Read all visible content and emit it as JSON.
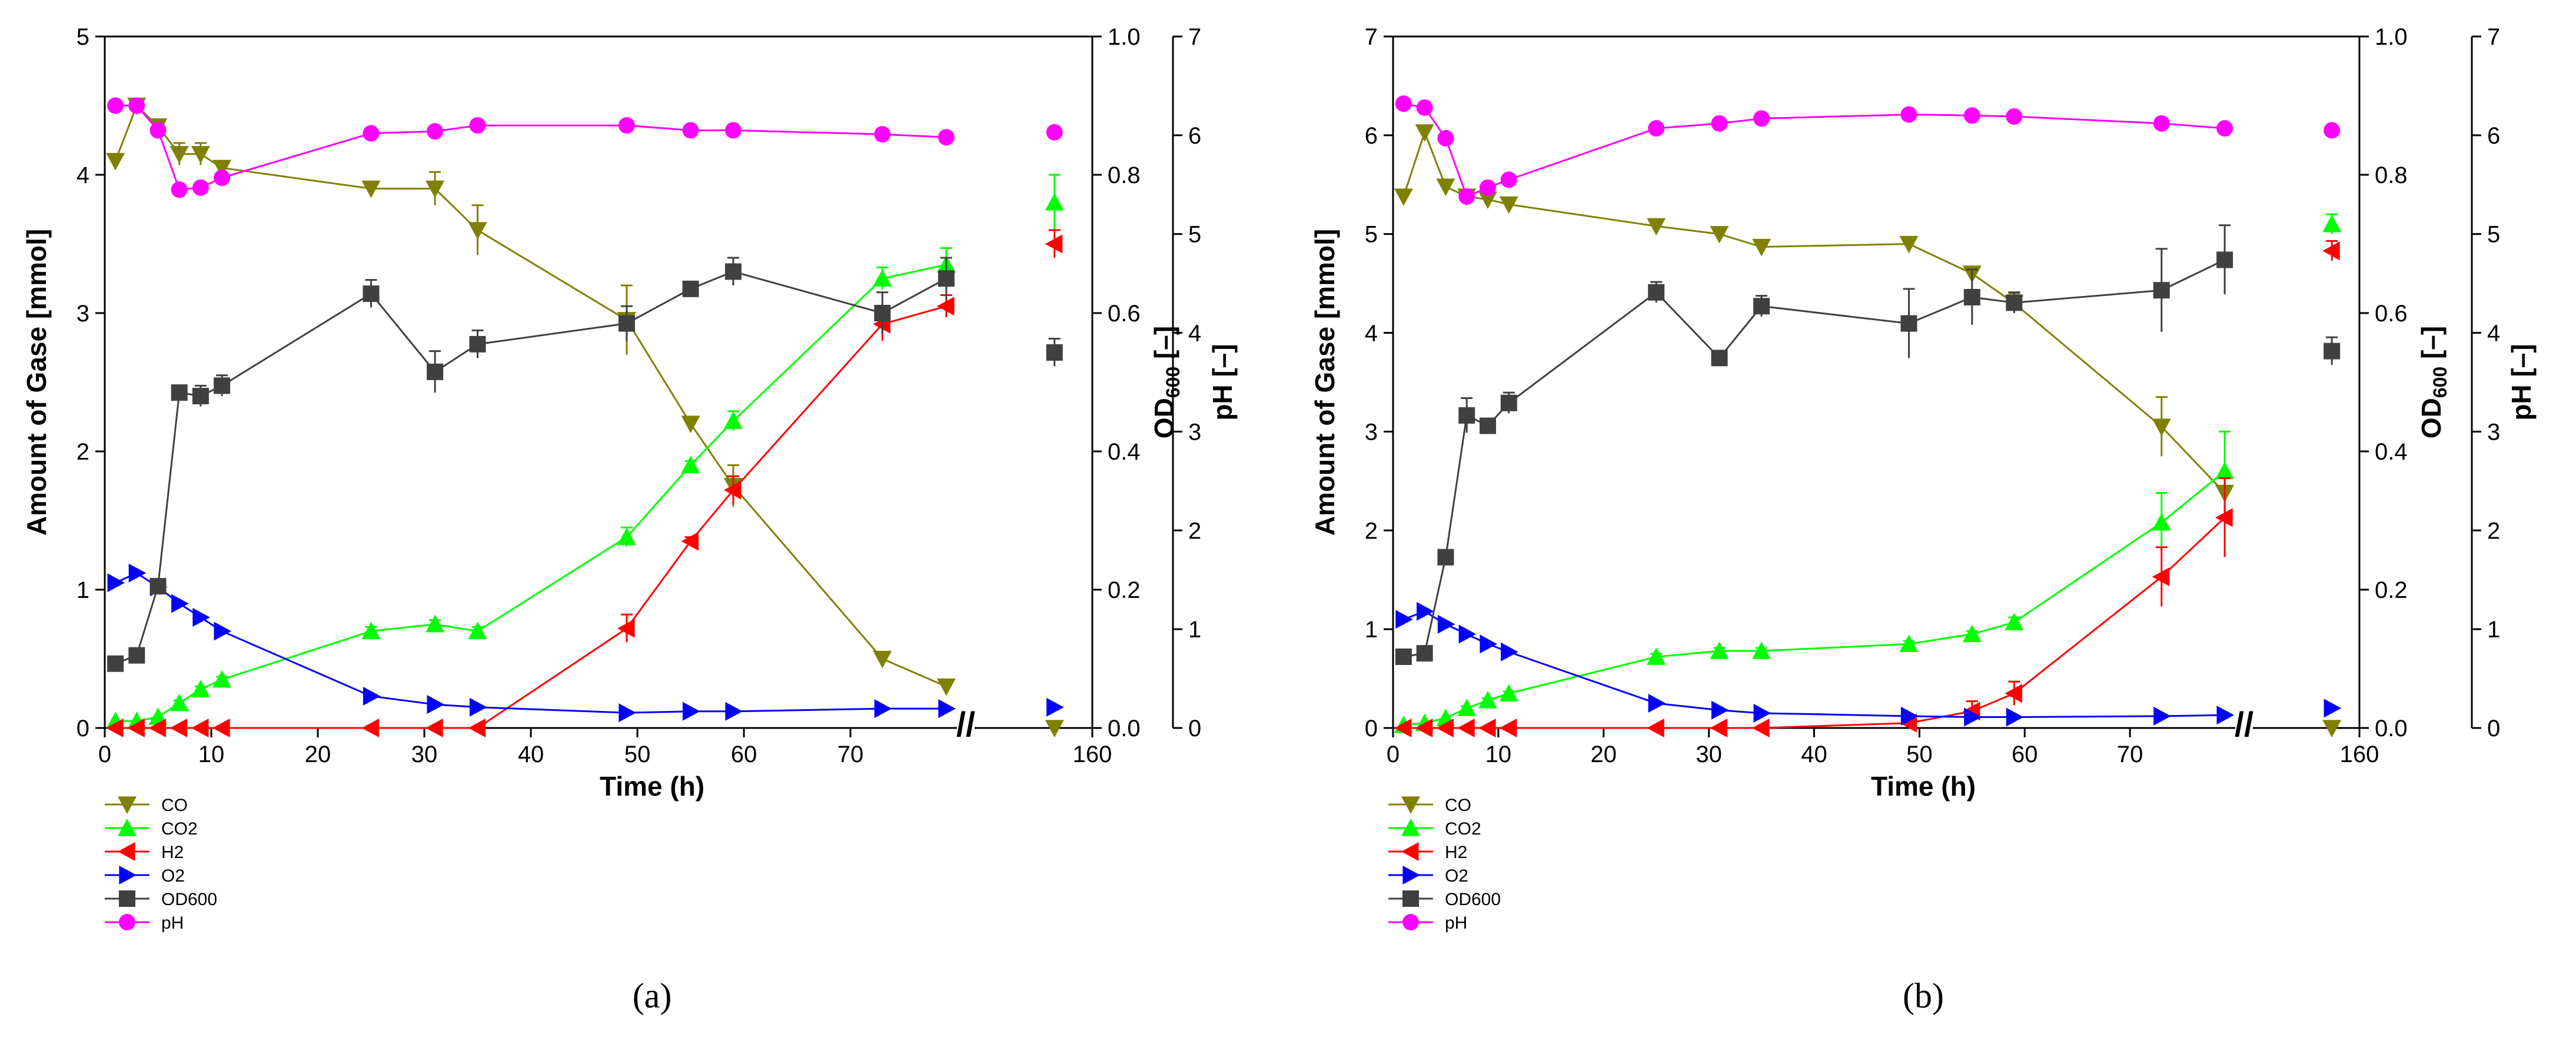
{
  "figure": {
    "panel_labels": [
      "(a)",
      "(b)"
    ],
    "axis_break_symbol": "//"
  },
  "colors": {
    "CO": "#808000",
    "CO2": "#00ff00",
    "H2": "#ff0000",
    "O2": "#0000ff",
    "OD600": "#404040",
    "pH": "#ff00ff",
    "axis": "#000000"
  },
  "chart_data": [
    {
      "type": "line",
      "panel": "(a)",
      "xlabel": "Time (h)",
      "ylabel_left": "Amount of Gase [mmol]",
      "ylabel_od": "OD",
      "ylabel_od_sub": "600",
      "ylabel_od_unit": " [–]",
      "ylabel_ph": "pH [–]",
      "x_ticks": [
        "0",
        "10",
        "20",
        "30",
        "40",
        "50",
        "60",
        "70",
        "160"
      ],
      "x_break": "//",
      "ylim_left": [
        0,
        5
      ],
      "y_ticks_left": [
        "0",
        "1",
        "2",
        "3",
        "4",
        "5"
      ],
      "ylim_od": [
        0,
        1.0
      ],
      "y_ticks_od": [
        "0.0",
        "0.2",
        "0.4",
        "0.6",
        "0.8",
        "1.0"
      ],
      "ylim_ph": [
        0,
        7
      ],
      "y_ticks_ph": [
        "0",
        "1",
        "2",
        "3",
        "4",
        "5",
        "6",
        "7"
      ],
      "legend_position": "below-left",
      "series": [
        {
          "name": "CO",
          "axis": "left",
          "marker": "triangle-down",
          "x": [
            1,
            3,
            5,
            7,
            9,
            11,
            25,
            31,
            35,
            49,
            55,
            59,
            73,
            79,
            160
          ],
          "y": [
            4.1,
            4.5,
            4.35,
            4.15,
            4.15,
            4.05,
            3.9,
            3.9,
            3.6,
            2.95,
            2.2,
            1.75,
            0.5,
            0.3,
            0.0
          ],
          "err": [
            0.05,
            0.05,
            0.05,
            0.08,
            0.08,
            0.05,
            0.05,
            0.12,
            0.18,
            0.25,
            0.05,
            0.15,
            0.05,
            0.05,
            0.0
          ]
        },
        {
          "name": "CO2",
          "axis": "left",
          "marker": "triangle-up",
          "x": [
            1,
            3,
            5,
            7,
            9,
            11,
            25,
            31,
            35,
            49,
            55,
            59,
            73,
            79,
            160
          ],
          "y": [
            0.05,
            0.05,
            0.08,
            0.18,
            0.28,
            0.35,
            0.7,
            0.75,
            0.7,
            1.38,
            1.9,
            2.22,
            3.25,
            3.35,
            3.8
          ],
          "err": [
            0.0,
            0.0,
            0.0,
            0.02,
            0.02,
            0.02,
            0.03,
            0.03,
            0.03,
            0.07,
            0.03,
            0.07,
            0.08,
            0.12,
            0.2
          ]
        },
        {
          "name": "H2",
          "axis": "left",
          "marker": "triangle-left",
          "x": [
            1,
            3,
            5,
            7,
            9,
            11,
            25,
            31,
            35,
            49,
            55,
            59,
            73,
            79,
            160
          ],
          "y": [
            0.0,
            0.0,
            0.0,
            0.0,
            0.0,
            0.0,
            0.0,
            0.0,
            0.0,
            0.72,
            1.35,
            1.72,
            2.92,
            3.05,
            3.5
          ],
          "err": [
            0.0,
            0.0,
            0.0,
            0.0,
            0.0,
            0.0,
            0.0,
            0.0,
            0.0,
            0.1,
            0.03,
            0.1,
            0.12,
            0.08,
            0.1
          ]
        },
        {
          "name": "O2",
          "axis": "left",
          "marker": "triangle-right",
          "x": [
            1,
            3,
            5,
            7,
            9,
            11,
            25,
            31,
            35,
            49,
            55,
            59,
            73,
            79,
            160
          ],
          "y": [
            1.05,
            1.12,
            1.02,
            0.9,
            0.8,
            0.7,
            0.23,
            0.17,
            0.15,
            0.11,
            0.12,
            0.12,
            0.14,
            0.14,
            0.15
          ],
          "err": [
            0,
            0,
            0,
            0,
            0,
            0,
            0,
            0,
            0,
            0,
            0,
            0,
            0,
            0,
            0
          ]
        },
        {
          "name": "OD600",
          "axis": "od",
          "marker": "square",
          "x": [
            1,
            3,
            5,
            7,
            9,
            11,
            25,
            31,
            35,
            49,
            55,
            59,
            73,
            79,
            160
          ],
          "y": [
            0.093,
            0.105,
            0.205,
            0.485,
            0.48,
            0.495,
            0.628,
            0.515,
            0.555,
            0.585,
            0.635,
            0.66,
            0.6,
            0.65,
            0.543
          ],
          "err": [
            0.01,
            0.005,
            0.005,
            0.005,
            0.015,
            0.015,
            0.02,
            0.03,
            0.02,
            0.025,
            0.005,
            0.02,
            0.03,
            0.03,
            0.02
          ]
        },
        {
          "name": "pH",
          "axis": "ph",
          "marker": "circle",
          "x": [
            1,
            3,
            5,
            7,
            9,
            11,
            25,
            31,
            35,
            49,
            55,
            59,
            73,
            79,
            160
          ],
          "y": [
            6.3,
            6.3,
            6.05,
            5.45,
            5.47,
            5.57,
            6.02,
            6.04,
            6.1,
            6.1,
            6.05,
            6.05,
            6.01,
            5.98,
            6.03
          ],
          "err": [
            0,
            0,
            0,
            0,
            0,
            0,
            0,
            0,
            0,
            0,
            0,
            0,
            0,
            0,
            0
          ]
        }
      ]
    },
    {
      "type": "line",
      "panel": "(b)",
      "xlabel": "Time (h)",
      "ylabel_left": "Amount of Gase [mmol]",
      "ylabel_od": "OD",
      "ylabel_od_sub": "600",
      "ylabel_od_unit": " [–]",
      "ylabel_ph": "pH [–]",
      "x_ticks": [
        "0",
        "10",
        "20",
        "30",
        "40",
        "50",
        "60",
        "70",
        "160"
      ],
      "x_break": "//",
      "ylim_left": [
        0,
        7
      ],
      "y_ticks_left": [
        "0",
        "1",
        "2",
        "3",
        "4",
        "5",
        "6",
        "7"
      ],
      "ylim_od": [
        0,
        1.0
      ],
      "y_ticks_od": [
        "0.0",
        "0.2",
        "0.4",
        "0.6",
        "0.8",
        "1.0"
      ],
      "ylim_ph": [
        0,
        7
      ],
      "y_ticks_ph": [
        "0",
        "1",
        "2",
        "3",
        "4",
        "5",
        "6",
        "7"
      ],
      "legend_position": "below-left",
      "series": [
        {
          "name": "CO",
          "axis": "left",
          "marker": "triangle-down",
          "x": [
            1,
            3,
            5,
            7,
            9,
            11,
            25,
            31,
            35,
            49,
            55,
            59,
            73,
            79,
            160
          ],
          "y": [
            5.38,
            6.03,
            5.48,
            5.38,
            5.35,
            5.3,
            5.08,
            5.0,
            4.87,
            4.9,
            4.6,
            4.3,
            3.05,
            2.38,
            0.0
          ],
          "err": [
            0.05,
            0.05,
            0.05,
            0.05,
            0.08,
            0.05,
            0.05,
            0.05,
            0.05,
            0.05,
            0.07,
            0.1,
            0.3,
            0.2,
            0.0
          ]
        },
        {
          "name": "CO2",
          "axis": "left",
          "marker": "triangle-up",
          "x": [
            1,
            3,
            5,
            7,
            9,
            11,
            25,
            31,
            35,
            49,
            55,
            59,
            73,
            79,
            160
          ],
          "y": [
            0.03,
            0.05,
            0.1,
            0.2,
            0.28,
            0.35,
            0.72,
            0.78,
            0.78,
            0.85,
            0.95,
            1.07,
            2.08,
            2.6,
            5.1
          ],
          "err": [
            0.0,
            0.0,
            0.0,
            0.02,
            0.02,
            0.02,
            0.03,
            0.03,
            0.03,
            0.03,
            0.03,
            0.05,
            0.3,
            0.4,
            0.1
          ]
        },
        {
          "name": "H2",
          "axis": "left",
          "marker": "triangle-left",
          "x": [
            1,
            3,
            5,
            7,
            9,
            11,
            25,
            31,
            35,
            49,
            55,
            59,
            73,
            79,
            160
          ],
          "y": [
            0.0,
            0.0,
            0.0,
            0.0,
            0.0,
            0.0,
            0.0,
            0.0,
            0.0,
            0.05,
            0.17,
            0.35,
            1.53,
            2.13,
            4.83
          ],
          "err": [
            0.0,
            0.0,
            0.0,
            0.0,
            0.0,
            0.0,
            0.0,
            0.0,
            0.0,
            0.03,
            0.1,
            0.12,
            0.3,
            0.4,
            0.1
          ]
        },
        {
          "name": "O2",
          "axis": "left",
          "marker": "triangle-right",
          "x": [
            1,
            3,
            5,
            7,
            9,
            11,
            25,
            31,
            35,
            49,
            55,
            59,
            73,
            79,
            160
          ],
          "y": [
            1.1,
            1.18,
            1.05,
            0.95,
            0.85,
            0.77,
            0.25,
            0.18,
            0.15,
            0.12,
            0.11,
            0.11,
            0.12,
            0.13,
            0.2
          ],
          "err": [
            0,
            0,
            0,
            0,
            0,
            0,
            0,
            0,
            0,
            0,
            0,
            0,
            0,
            0,
            0
          ]
        },
        {
          "name": "OD600",
          "axis": "od",
          "marker": "square",
          "x": [
            1,
            3,
            5,
            7,
            9,
            11,
            25,
            31,
            35,
            49,
            55,
            59,
            73,
            79,
            160
          ],
          "y": [
            0.103,
            0.108,
            0.247,
            0.452,
            0.437,
            0.47,
            0.63,
            0.535,
            0.61,
            0.585,
            0.623,
            0.615,
            0.633,
            0.677,
            0.545
          ],
          "err": [
            0.01,
            0.005,
            0.005,
            0.025,
            0.01,
            0.015,
            0.015,
            0.005,
            0.015,
            0.05,
            0.04,
            0.015,
            0.06,
            0.05,
            0.02
          ]
        },
        {
          "name": "pH",
          "axis": "ph",
          "marker": "circle",
          "x": [
            1,
            3,
            5,
            7,
            9,
            11,
            25,
            31,
            35,
            49,
            55,
            59,
            73,
            79,
            160
          ],
          "y": [
            6.32,
            6.28,
            5.97,
            5.38,
            5.47,
            5.55,
            6.07,
            6.12,
            6.17,
            6.21,
            6.2,
            6.19,
            6.12,
            6.07,
            6.05
          ],
          "err": [
            0,
            0,
            0,
            0,
            0,
            0,
            0,
            0,
            0,
            0,
            0,
            0,
            0,
            0,
            0
          ]
        }
      ]
    }
  ]
}
